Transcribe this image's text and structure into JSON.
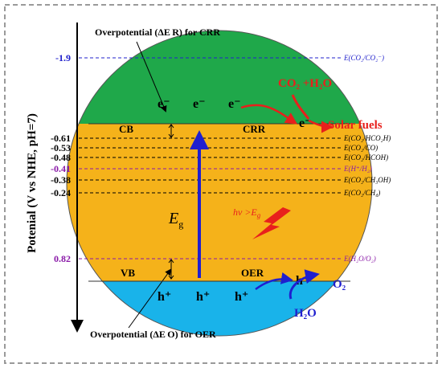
{
  "y_axis": {
    "label": "Potenial  (V vs NHE, pH=7)"
  },
  "overpotential_top": "Overpotential (ΔE R) for CRR",
  "overpotential_bottom": "Overpotential (ΔE O) for OER",
  "bands": {
    "cb": "CB",
    "vb": "VB",
    "crr": "CRR",
    "oer": "OER"
  },
  "bandgap": {
    "symbol": "E",
    "sub": "g",
    "photon": "hv >E",
    "photon_sub": "g"
  },
  "electron": "e⁻",
  "hole": "h⁺",
  "reactants": {
    "co2_h2o": "CO₂ +H₂O",
    "solar_fuels": "Solar fuels",
    "h2o": "H₂O",
    "o2": "O₂"
  },
  "levels": [
    {
      "value": "-1.9",
      "label": "E(CO₂/CO₂⁻)",
      "color": "#2222cc"
    },
    {
      "value": "-0.61",
      "label": "E(CO₂/HCO₂H)",
      "color": "#000000"
    },
    {
      "value": "-0.53",
      "label": "E(CO₂/CO)",
      "color": "#000000"
    },
    {
      "value": "-0.48",
      "label": "E(CO₂/HCOH)",
      "color": "#000000"
    },
    {
      "value": "-0.41",
      "label": "E(H⁺/H₂)",
      "color": "#8a1aa8"
    },
    {
      "value": "-0.38",
      "label": "E(CO₂/CH₃OH)",
      "color": "#000000"
    },
    {
      "value": "-0.24",
      "label": "E(CO₂/CH₄)",
      "color": "#000000"
    },
    {
      "value": "0.82",
      "label": "E(H₂O/O₂)",
      "color": "#8a1aa8"
    }
  ],
  "colors": {
    "cb_region": "#1fa84a",
    "gap_region": "#f5b21a",
    "vb_region": "#19b3ea",
    "arrow_blue": "#1f1fcf",
    "arrow_red": "#e8201c",
    "purple": "#8a1aa8"
  }
}
